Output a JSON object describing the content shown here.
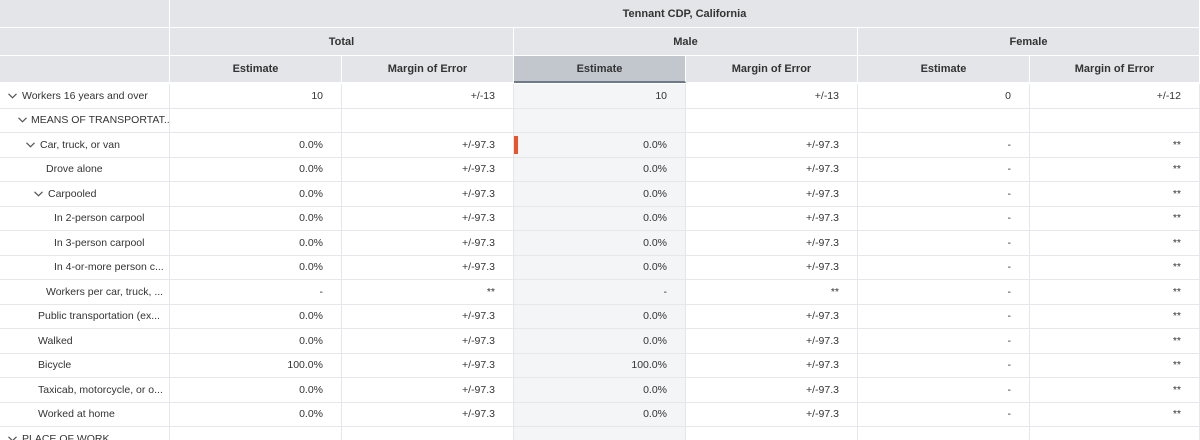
{
  "header": {
    "geo": "Tennant CDP, California",
    "groups": [
      "Total",
      "Male",
      "Female"
    ],
    "columns": [
      "Estimate",
      "Margin of Error",
      "Estimate",
      "Margin of Error",
      "Estimate",
      "Margin of Error"
    ]
  },
  "rows": [
    {
      "label": "Workers 16 years and over",
      "values": [
        "10",
        "+/-13",
        "10",
        "+/-13",
        "0",
        "+/-12"
      ]
    },
    {
      "label": "MEANS OF TRANSPORTAT...",
      "values": [
        "",
        "",
        "",
        "",
        "",
        ""
      ]
    },
    {
      "label": "Car, truck, or van",
      "values": [
        "0.0%",
        "+/-97.3",
        "0.0%",
        "+/-97.3",
        "-",
        "**"
      ]
    },
    {
      "label": "Drove alone",
      "values": [
        "0.0%",
        "+/-97.3",
        "0.0%",
        "+/-97.3",
        "-",
        "**"
      ]
    },
    {
      "label": "Carpooled",
      "values": [
        "0.0%",
        "+/-97.3",
        "0.0%",
        "+/-97.3",
        "-",
        "**"
      ]
    },
    {
      "label": "In 2-person carpool",
      "values": [
        "0.0%",
        "+/-97.3",
        "0.0%",
        "+/-97.3",
        "-",
        "**"
      ]
    },
    {
      "label": "In 3-person carpool",
      "values": [
        "0.0%",
        "+/-97.3",
        "0.0%",
        "+/-97.3",
        "-",
        "**"
      ]
    },
    {
      "label": "In 4-or-more person c...",
      "values": [
        "0.0%",
        "+/-97.3",
        "0.0%",
        "+/-97.3",
        "-",
        "**"
      ]
    },
    {
      "label": "Workers per car, truck, ...",
      "values": [
        "-",
        "**",
        "-",
        "**",
        "-",
        "**"
      ]
    },
    {
      "label": "Public transportation (ex...",
      "values": [
        "0.0%",
        "+/-97.3",
        "0.0%",
        "+/-97.3",
        "-",
        "**"
      ]
    },
    {
      "label": "Walked",
      "values": [
        "0.0%",
        "+/-97.3",
        "0.0%",
        "+/-97.3",
        "-",
        "**"
      ]
    },
    {
      "label": "Bicycle",
      "values": [
        "100.0%",
        "+/-97.3",
        "100.0%",
        "+/-97.3",
        "-",
        "**"
      ]
    },
    {
      "label": "Taxicab, motorcycle, or o...",
      "values": [
        "0.0%",
        "+/-97.3",
        "0.0%",
        "+/-97.3",
        "-",
        "**"
      ]
    },
    {
      "label": "Worked at home",
      "values": [
        "0.0%",
        "+/-97.3",
        "0.0%",
        "+/-97.3",
        "-",
        "**"
      ]
    },
    {
      "label": "PLACE OF WORK",
      "values": [
        "",
        "",
        "",
        "",
        "",
        ""
      ]
    }
  ],
  "colors": {
    "header_bg": "#e3e5e8",
    "selected_header_bg": "#c2c7ce",
    "marker": "#e8542c"
  }
}
